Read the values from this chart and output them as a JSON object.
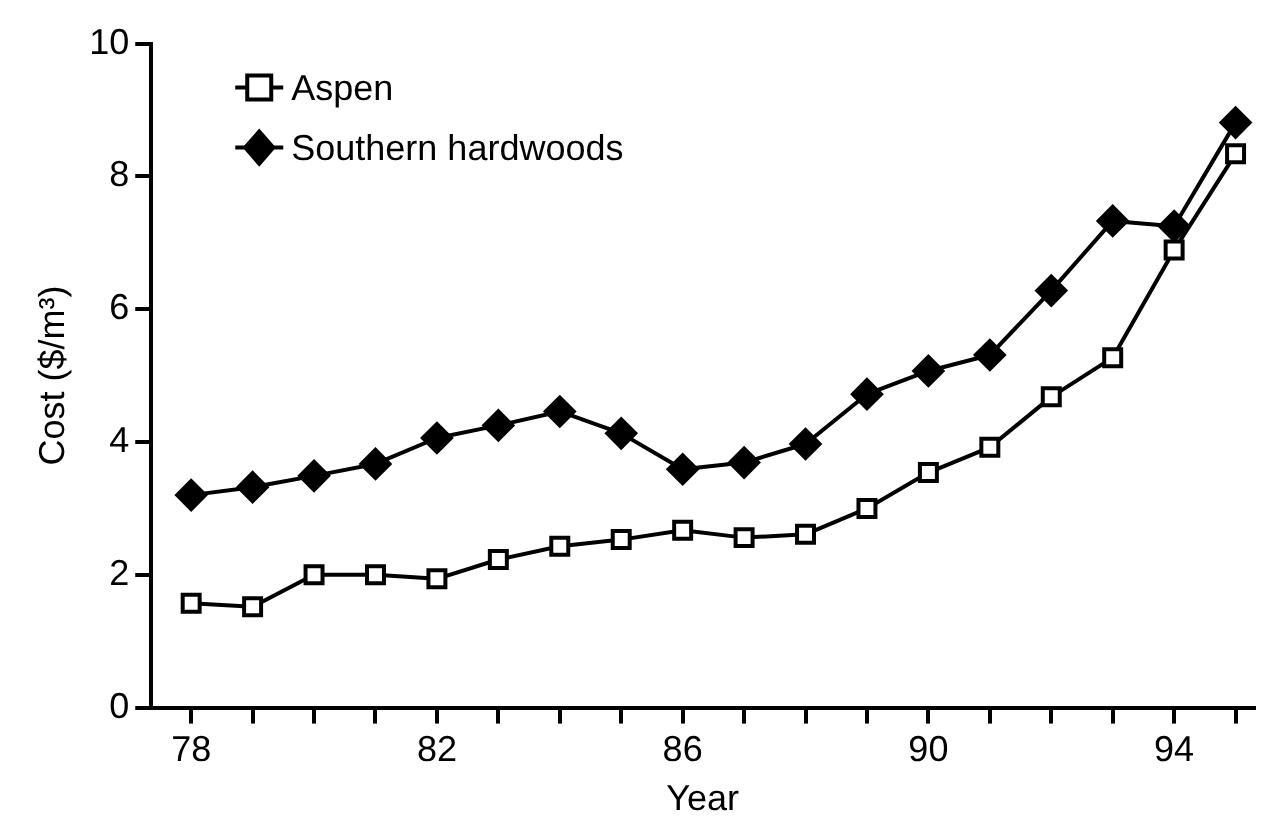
{
  "chart_data": {
    "type": "line",
    "xlabel": "Year",
    "ylabel": "Cost ($/m³)",
    "x": [
      78,
      79,
      80,
      81,
      82,
      83,
      84,
      85,
      86,
      87,
      88,
      89,
      90,
      91,
      92,
      93,
      94,
      95
    ],
    "series": [
      {
        "name": "Aspen",
        "color": "#000000",
        "marker": "square",
        "values": [
          1.57,
          1.52,
          2.0,
          2.0,
          1.94,
          2.23,
          2.43,
          2.53,
          2.67,
          2.56,
          2.61,
          3.0,
          3.54,
          3.92,
          4.68,
          5.27,
          6.89,
          8.34
        ]
      },
      {
        "name": "Southern hardwoods",
        "color": "#000000",
        "marker": "diamond",
        "values": [
          3.2,
          3.32,
          3.49,
          3.67,
          4.06,
          4.25,
          4.46,
          4.13,
          3.59,
          3.69,
          3.97,
          4.72,
          5.07,
          5.31,
          6.28,
          7.33,
          7.25,
          8.81
        ]
      }
    ],
    "xlim": [
      77.35,
      95.3
    ],
    "xticks": [
      78,
      {
        "value": 79,
        "label": null
      },
      {
        "value": 80,
        "label": null
      },
      {
        "value": 81,
        "label": null
      },
      82,
      {
        "value": 83,
        "label": null
      },
      {
        "value": 84,
        "label": null
      },
      {
        "value": 85,
        "label": null
      },
      86,
      {
        "value": 87,
        "label": null
      },
      {
        "value": 88,
        "label": null
      },
      {
        "value": 89,
        "label": null
      },
      90,
      {
        "value": 91,
        "label": null
      },
      {
        "value": 92,
        "label": null
      },
      {
        "value": 93,
        "label": null
      },
      94,
      {
        "value": 95,
        "label": null
      }
    ],
    "ylim": [
      0,
      10
    ],
    "yticks": [
      0,
      2,
      4,
      6,
      8,
      10
    ],
    "grid": false,
    "legend": "top left",
    "line_style": "solid"
  }
}
